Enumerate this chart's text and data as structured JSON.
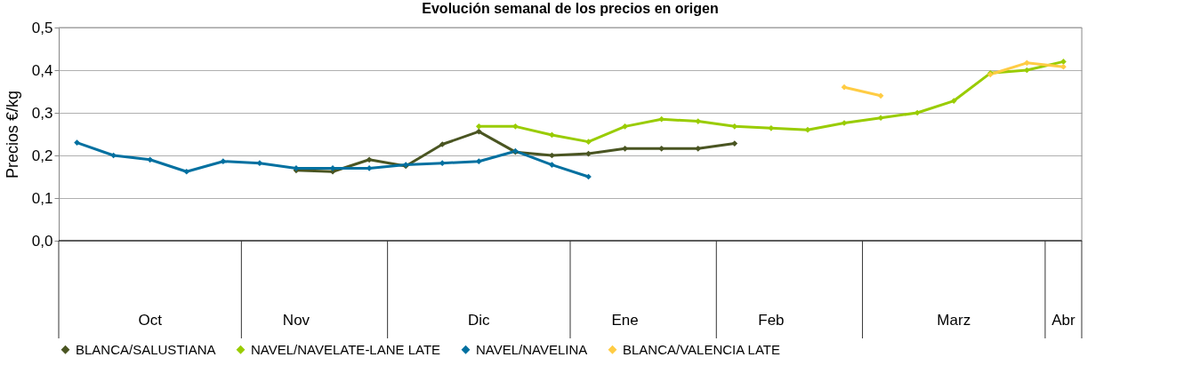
{
  "chart_data": {
    "type": "line",
    "title": "Evolución semanal de los precios en origen",
    "ylabel": "Precios €/kg",
    "categories": [
      null,
      null,
      "Oct",
      null,
      null,
      null,
      "Nov",
      null,
      null,
      null,
      null,
      "Dic",
      null,
      null,
      null,
      "Ene",
      null,
      null,
      null,
      "Feb",
      null,
      null,
      null,
      null,
      "Marz",
      null,
      null,
      "Abr"
    ],
    "series": [
      {
        "name": "BLANCA/SALUSTIANA",
        "color": "#4a5522",
        "values": [
          null,
          null,
          null,
          null,
          null,
          null,
          0.165,
          0.162,
          0.19,
          0.175,
          0.226,
          0.256,
          0.208,
          0.2,
          0.204,
          0.216,
          0.216,
          0.216,
          0.228,
          null,
          null,
          null,
          null,
          null,
          null,
          null,
          null,
          null
        ]
      },
      {
        "name": "NAVEL/NAVELATE-LANE LATE",
        "color": "#99cc00",
        "values": [
          null,
          null,
          null,
          null,
          null,
          null,
          null,
          null,
          null,
          null,
          null,
          0.268,
          0.268,
          0.248,
          0.232,
          0.268,
          0.285,
          0.28,
          0.268,
          0.264,
          0.26,
          0.276,
          0.288,
          0.3,
          0.328,
          0.393,
          0.4,
          0.42
        ]
      },
      {
        "name": "NAVEL/NAVELINA",
        "color": "#0070a0",
        "values": [
          0.23,
          0.2,
          0.19,
          0.162,
          0.186,
          0.182,
          0.17,
          0.17,
          0.17,
          0.178,
          0.182,
          0.186,
          0.21,
          0.178,
          0.15,
          null,
          null,
          null,
          null,
          null,
          null,
          null,
          null,
          null,
          null,
          null,
          null,
          null
        ]
      },
      {
        "name": "BLANCA/VALENCIA LATE",
        "color": "#ffcc44",
        "values": [
          null,
          null,
          null,
          null,
          null,
          null,
          null,
          null,
          null,
          null,
          null,
          null,
          null,
          null,
          null,
          null,
          null,
          null,
          null,
          null,
          null,
          0.36,
          0.34,
          null,
          null,
          0.39,
          0.417,
          0.408
        ]
      }
    ],
    "ylim": [
      0,
      0.5
    ],
    "yticks": [
      {
        "value": 0,
        "label": "0,0"
      },
      {
        "value": 0.1,
        "label": "0,1"
      },
      {
        "value": 0.2,
        "label": "0,2"
      },
      {
        "value": 0.3,
        "label": "0,3"
      },
      {
        "value": 0.4,
        "label": "0,4"
      },
      {
        "value": 0.5,
        "label": "0,5"
      }
    ],
    "grid": "y",
    "legend": "bottom",
    "marker": "diamond",
    "line_style": "solid"
  }
}
